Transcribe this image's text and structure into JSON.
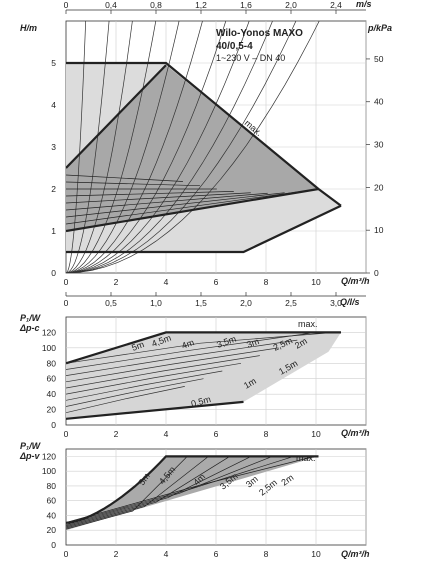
{
  "chart_data": [
    {
      "type": "line",
      "panel": "head",
      "title": "Wilo-Yonos MAXO",
      "title_line2": "40/0,5-4",
      "subtitle": "1~230 V – DN 40",
      "ylabel": "H/m",
      "y2label": "p/kPa",
      "xlabel": "Q/m³/h",
      "top_axis_unit": "m/s",
      "xlim": [
        0,
        12
      ],
      "ylim": [
        0,
        6
      ],
      "x_ticks": [
        "0",
        "2",
        "4",
        "6",
        "8",
        "10"
      ],
      "y_ticks": [
        "0",
        "1",
        "2",
        "3",
        "4",
        "5"
      ],
      "y2_ticks": [
        "0",
        "10",
        "20",
        "30",
        "40",
        "50"
      ],
      "top_ticks": [
        "0",
        "0,4",
        "0,8",
        "1,2",
        "1,6",
        "2,0",
        "2,4"
      ],
      "annotations": [
        "max."
      ],
      "series": [
        {
          "name": "max.",
          "x": [
            0,
            4,
            10.1,
            11
          ],
          "y": [
            5,
            5,
            2,
            1.6
          ]
        },
        {
          "x": [
            0,
            10.1
          ],
          "y": [
            1,
            2
          ]
        },
        {
          "x": [
            0,
            11
          ],
          "y": [
            0.5,
            1.6
          ]
        },
        {
          "x": [
            0,
            7.1
          ],
          "y": [
            0.5,
            0.5
          ]
        },
        {
          "x": [
            0,
            4,
            10.1
          ],
          "y": [
            2.5,
            4.95,
            2
          ]
        }
      ]
    },
    {
      "type": "line",
      "panel": "power-dp-c",
      "ylabel": "P₁/W",
      "ylabel2": "Δp-c",
      "xlabel": "Q/m³/h",
      "top_axis_unit": "Q/l/s",
      "xlim": [
        0,
        12
      ],
      "ylim": [
        0,
        140
      ],
      "x_ticks": [
        "0",
        "2",
        "4",
        "6",
        "8",
        "10"
      ],
      "y_ticks": [
        "0",
        "20",
        "40",
        "60",
        "80",
        "100",
        "120"
      ],
      "top_ticks": [
        "0",
        "0,5",
        "1,0",
        "1,5",
        "2,0",
        "2,5",
        "3,0"
      ],
      "curve_labels": [
        "max.",
        "5m",
        "4,5m",
        "4m",
        "3,5m",
        "3m",
        "2,5m",
        "2m",
        "1,5m",
        "1m",
        "0,5m"
      ],
      "series": [
        {
          "name": "max.",
          "x": [
            0,
            4,
            11
          ],
          "y": [
            80,
            120,
            120
          ]
        },
        {
          "name": "0,5m",
          "x": [
            0,
            7.1
          ],
          "y": [
            8,
            30
          ]
        }
      ]
    },
    {
      "type": "line",
      "panel": "power-dp-v",
      "ylabel": "P₁/W",
      "ylabel2": "Δp-v",
      "xlabel": "Q/m³/h",
      "xlim": [
        0,
        12
      ],
      "ylim": [
        0,
        130
      ],
      "x_ticks": [
        "0",
        "2",
        "4",
        "6",
        "8",
        "10"
      ],
      "y_ticks": [
        "0",
        "20",
        "40",
        "60",
        "80",
        "100",
        "120"
      ],
      "curve_labels": [
        "max.",
        "5m",
        "4,5m",
        "4m",
        "3,5m",
        "3m",
        "2,5m",
        "2m"
      ],
      "series": [
        {
          "name": "max.",
          "x": [
            0,
            4,
            10.1
          ],
          "y": [
            30,
            120,
            120
          ]
        }
      ]
    }
  ]
}
